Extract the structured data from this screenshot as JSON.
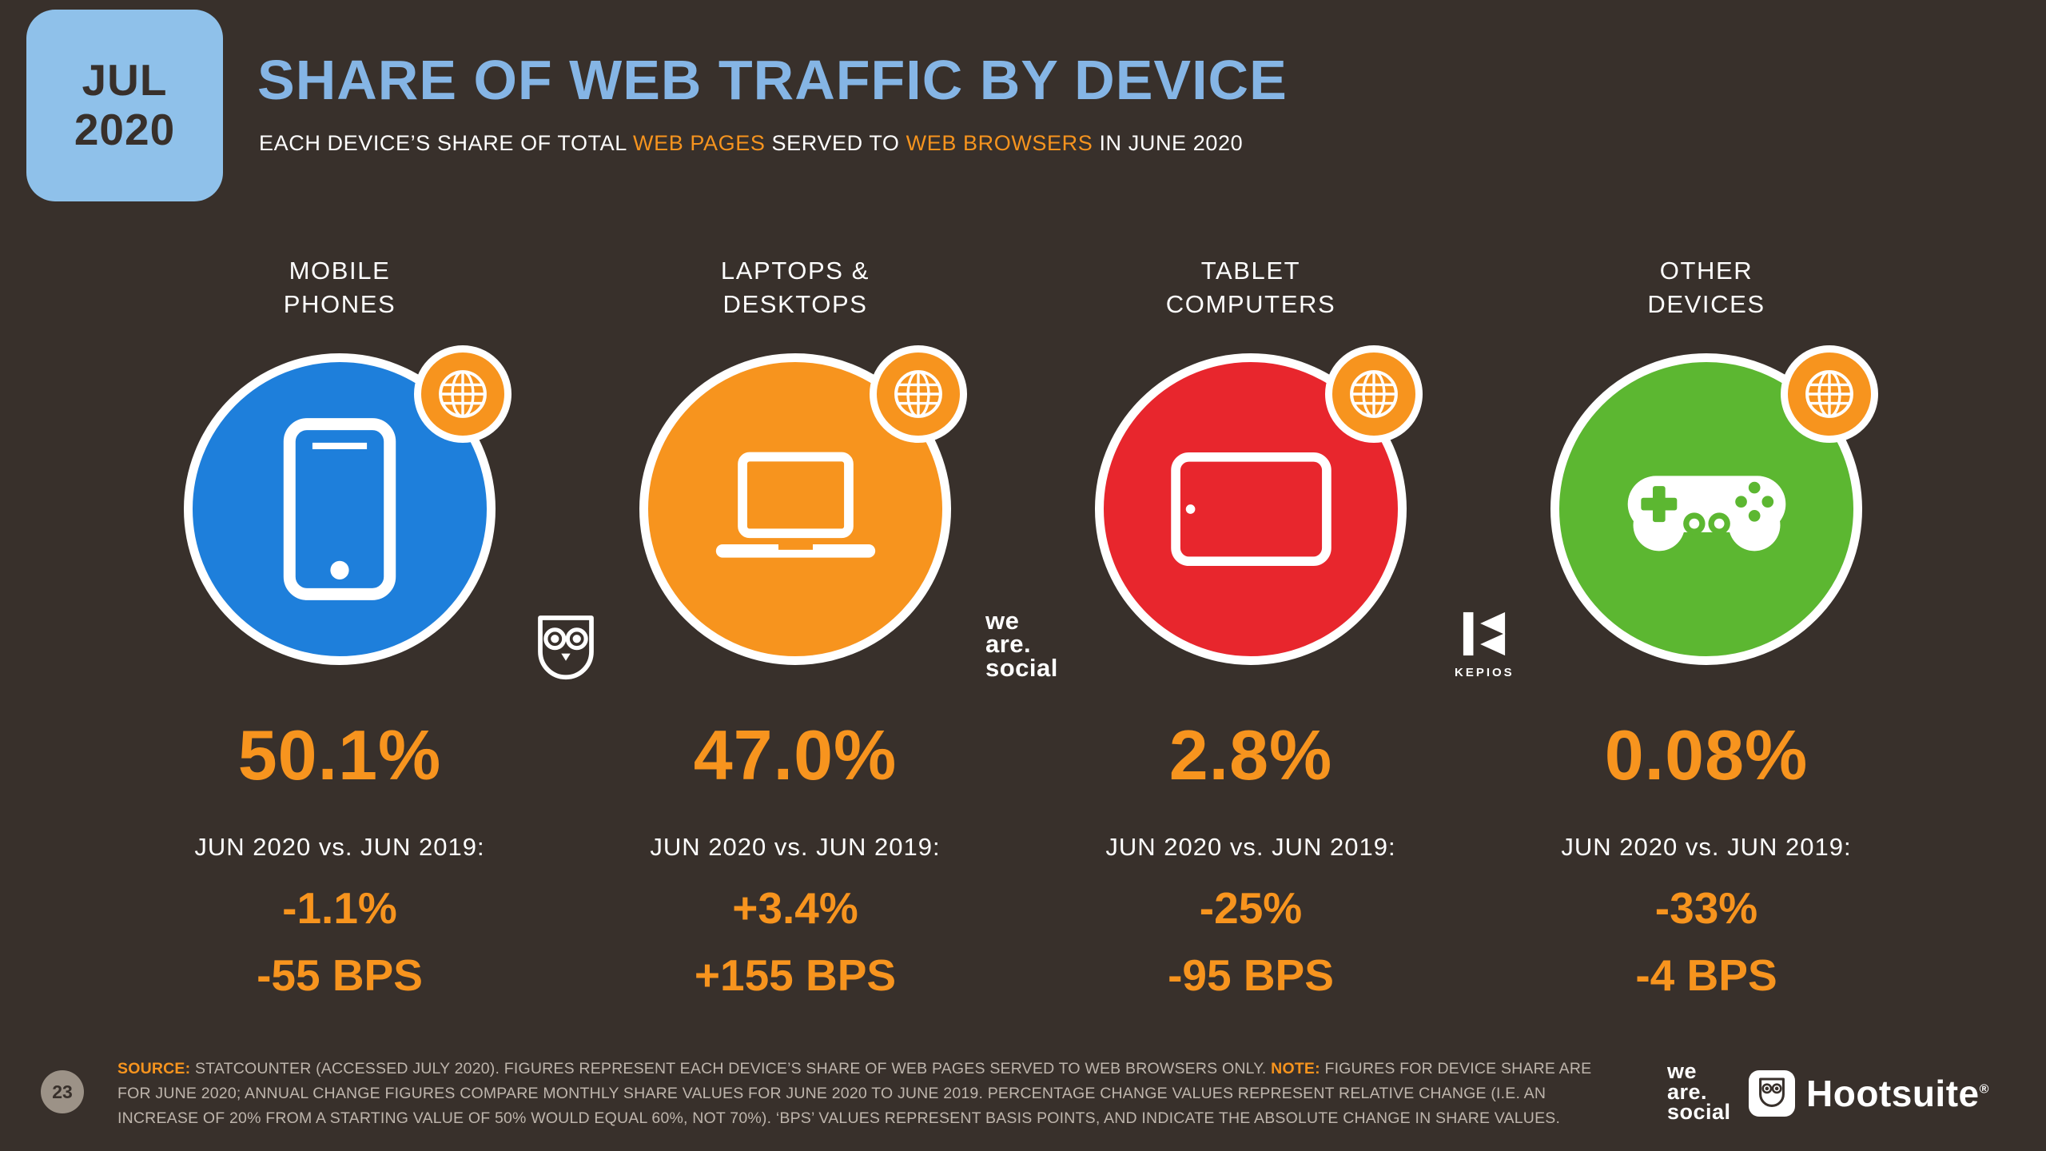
{
  "colors": {
    "background": "#38302B",
    "badge_blue": "#8FC1EA",
    "title_blue": "#85B5E5",
    "accent_orange": "#F7941E",
    "text_light": "#FFFFFF",
    "muted_text": "#BEB5AC",
    "footer_circle": "#9C9287",
    "mobile_blue": "#1E7FDB",
    "laptop_orange": "#F7941E",
    "tablet_red": "#E8262D",
    "other_green": "#5CB731"
  },
  "header": {
    "date_month": "JUL",
    "date_year": "2020",
    "title": "SHARE OF WEB TRAFFIC BY DEVICE",
    "subtitle_parts": [
      {
        "text": "EACH DEVICE’S SHARE OF TOTAL ",
        "hl": false
      },
      {
        "text": "WEB PAGES",
        "hl": true
      },
      {
        "text": " SERVED TO ",
        "hl": false
      },
      {
        "text": "WEB BROWSERS",
        "hl": true
      },
      {
        "text": " IN JUNE 2020",
        "hl": false
      }
    ]
  },
  "chart_data": {
    "type": "table",
    "title": "SHARE OF WEB TRAFFIC BY DEVICE",
    "subtitle": "EACH DEVICE'S SHARE OF TOTAL WEB PAGES SERVED TO WEB BROWSERS IN JUNE 2020",
    "categories": [
      "MOBILE PHONES",
      "LAPTOPS & DESKTOPS",
      "TABLET COMPUTERS",
      "OTHER DEVICES"
    ],
    "series": [
      {
        "name": "Share of web traffic, June 2020 (%)",
        "values": [
          50.1,
          47.0,
          2.8,
          0.08
        ]
      },
      {
        "name": "Relative change, Jun 2020 vs Jun 2019 (%)",
        "values": [
          -1.1,
          3.4,
          -25,
          -33
        ]
      },
      {
        "name": "Absolute change, Jun 2020 vs Jun 2019 (basis points)",
        "values": [
          -55,
          155,
          -95,
          -4
        ]
      }
    ]
  },
  "columns": [
    {
      "label": "MOBILE\nPHONES",
      "icon": "mobile-phone-icon",
      "color": "#1E7FDB",
      "share": "50.1%",
      "comparison_label": "JUN 2020 vs. JUN 2019:",
      "change_percent": "-1.1%",
      "change_bps": "-55 BPS"
    },
    {
      "label": "LAPTOPS &\nDESKTOPS",
      "icon": "laptop-icon",
      "color": "#F7941E",
      "share": "47.0%",
      "comparison_label": "JUN 2020 vs. JUN 2019:",
      "change_percent": "+3.4%",
      "change_bps": "+155 BPS"
    },
    {
      "label": "TABLET\nCOMPUTERS",
      "icon": "tablet-icon",
      "color": "#E8262D",
      "share": "2.8%",
      "comparison_label": "JUN 2020 vs. JUN 2019:",
      "change_percent": "-25%",
      "change_bps": "-95 BPS"
    },
    {
      "label": "OTHER\nDEVICES",
      "icon": "game-controller-icon",
      "color": "#5CB731",
      "share": "0.08%",
      "comparison_label": "JUN 2020 vs. JUN 2019:",
      "change_percent": "-33%",
      "change_bps": "-4 BPS"
    }
  ],
  "logos": {
    "we_are_social_lines": [
      "we",
      "are.",
      "social"
    ],
    "kepios_label": "KEPIOS",
    "hootsuite_wordmark": "Hootsuite",
    "registered_mark": "®"
  },
  "footer": {
    "page_number": "23",
    "source_parts": [
      {
        "text": "SOURCE: ",
        "hl": true
      },
      {
        "text": "STATCOUNTER (ACCESSED JULY 2020). FIGURES REPRESENT EACH DEVICE’S SHARE OF WEB PAGES SERVED TO WEB BROWSERS ONLY. ",
        "hl": false
      },
      {
        "text": "NOTE: ",
        "hl": true
      },
      {
        "text": "FIGURES FOR DEVICE SHARE ARE FOR JUNE 2020; ANNUAL CHANGE FIGURES COMPARE MONTHLY SHARE VALUES FOR JUNE 2020 TO JUNE 2019. PERCENTAGE CHANGE VALUES REPRESENT RELATIVE CHANGE (I.E. AN INCREASE OF 20% FROM A STARTING VALUE OF 50% WOULD EQUAL 60%, NOT 70%). ‘BPS’ VALUES REPRESENT BASIS POINTS, AND INDICATE THE ABSOLUTE CHANGE IN SHARE VALUES.",
        "hl": false
      }
    ]
  }
}
